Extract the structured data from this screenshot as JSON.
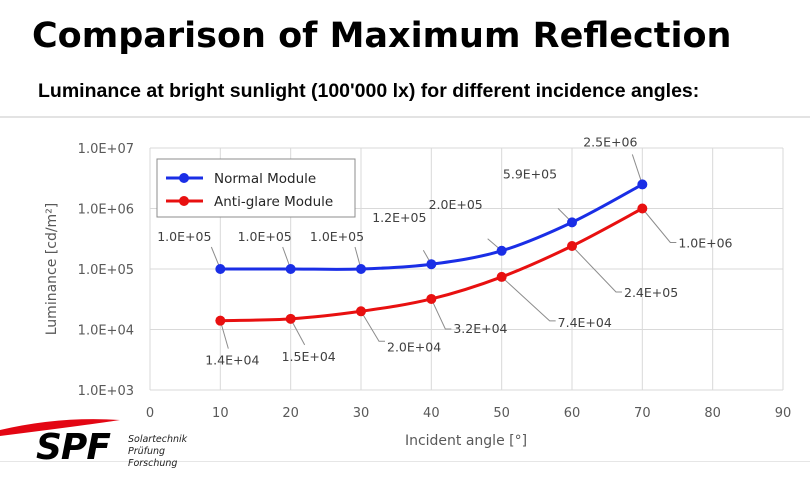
{
  "header": {
    "title": "Comparison of Maximum Reflection",
    "subtitle": "Luminance at bright sunlight (100'000 lx) for different incidence angles:"
  },
  "logo": {
    "name": "SPF",
    "lines": [
      "Solartechnik",
      "Prüfung",
      "Forschung"
    ],
    "arc_color": "#e30613"
  },
  "chart_data": {
    "type": "line",
    "title": "",
    "xlabel": "Incident angle [°]",
    "ylabel": "Luminance [cd/m²]",
    "yscale": "log",
    "xlim": [
      0,
      90
    ],
    "ylim": [
      1000,
      10000000
    ],
    "x_ticks": [
      "0",
      "10",
      "20",
      "30",
      "40",
      "50",
      "60",
      "70",
      "80",
      "90"
    ],
    "y_ticks": [
      "1.0E+03",
      "1.0E+04",
      "1.0E+05",
      "1.0E+06",
      "1.0E+07"
    ],
    "grid": true,
    "legend_position": "top-left",
    "x": [
      10,
      20,
      30,
      40,
      50,
      60,
      70
    ],
    "series": [
      {
        "name": "Normal Module",
        "color": "#1a2ee6",
        "values": [
          100000,
          100000,
          100000,
          120000,
          200000,
          590000,
          2500000
        ],
        "labels": [
          "1.0E+05",
          "1.0E+05",
          "1.0E+05",
          "1.2E+05",
          "2.0E+05",
          "5.9E+05",
          "2.5E+06"
        ]
      },
      {
        "name": "Anti-glare Module",
        "color": "#e81010",
        "values": [
          14000,
          15000,
          20000,
          32000,
          74000,
          240000,
          1000000
        ],
        "labels": [
          "1.4E+04",
          "1.5E+04",
          "2.0E+04",
          "3.2E+04",
          "7.4E+04",
          "2.4E+05",
          "1.0E+06"
        ]
      }
    ]
  }
}
